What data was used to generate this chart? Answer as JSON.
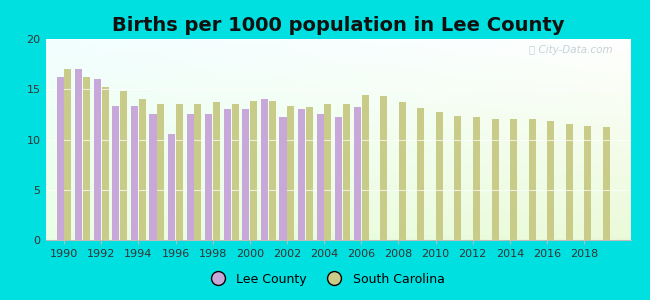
{
  "title": "Births per 1000 population in Lee County",
  "years_lee": [
    1990,
    1991,
    1992,
    1993,
    1994,
    1995,
    1996,
    1997,
    1998,
    1999,
    2000,
    2001,
    2002,
    2003,
    2004,
    2005,
    2006
  ],
  "values_lee": [
    16.2,
    17.0,
    16.0,
    13.3,
    13.3,
    12.5,
    10.5,
    12.5,
    12.5,
    13.0,
    13.0,
    14.0,
    12.2,
    13.0,
    12.5,
    12.2,
    13.2
  ],
  "years_sc": [
    1990,
    1991,
    1992,
    1993,
    1994,
    1995,
    1996,
    1997,
    1998,
    1999,
    2000,
    2001,
    2002,
    2003,
    2004,
    2005,
    2006,
    2007,
    2008,
    2009,
    2010,
    2011,
    2012,
    2013,
    2014,
    2015,
    2016,
    2017,
    2018,
    2019
  ],
  "values_sc": [
    17.0,
    16.2,
    15.2,
    14.8,
    14.0,
    13.5,
    13.5,
    13.5,
    13.7,
    13.5,
    13.8,
    13.8,
    13.3,
    13.2,
    13.5,
    13.5,
    14.4,
    14.3,
    13.7,
    13.1,
    12.7,
    12.3,
    12.2,
    12.0,
    12.0,
    12.0,
    11.8,
    11.5,
    11.3,
    11.2
  ],
  "color_lee": "#c8a8d8",
  "color_sc": "#c8cc88",
  "background_fig": "#00e0e0",
  "ylim": [
    0,
    20
  ],
  "yticks": [
    0,
    5,
    10,
    15,
    20
  ],
  "bar_width": 0.38,
  "title_fontsize": 14,
  "legend_lee": "Lee County",
  "legend_sc": "South Carolina",
  "xtick_years": [
    1990,
    1992,
    1994,
    1996,
    1998,
    2000,
    2002,
    2004,
    2006,
    2008,
    2010,
    2012,
    2014,
    2016,
    2018
  ],
  "xlim_left": 1989.0,
  "xlim_right": 2020.5
}
